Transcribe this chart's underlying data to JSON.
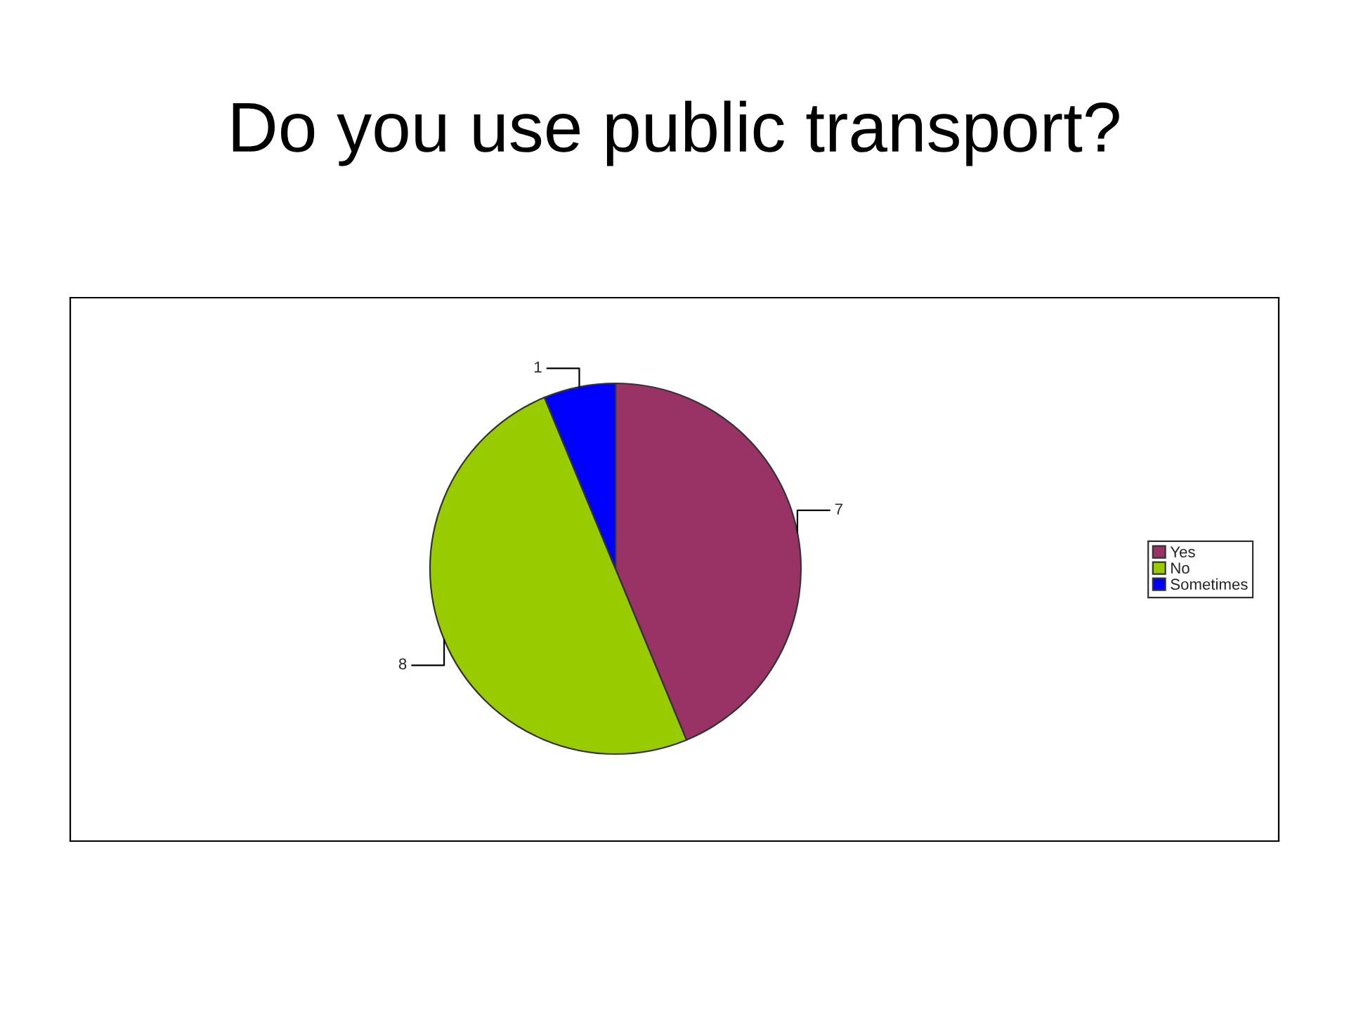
{
  "chart_data": {
    "type": "pie",
    "title": "Do you use public transport?",
    "categories": [
      "Yes",
      "No",
      "Sometimes"
    ],
    "values": [
      7,
      8,
      1
    ],
    "colors": [
      "#993366",
      "#99cc00",
      "#0000ff"
    ],
    "data_labels": true,
    "legend": "right"
  }
}
